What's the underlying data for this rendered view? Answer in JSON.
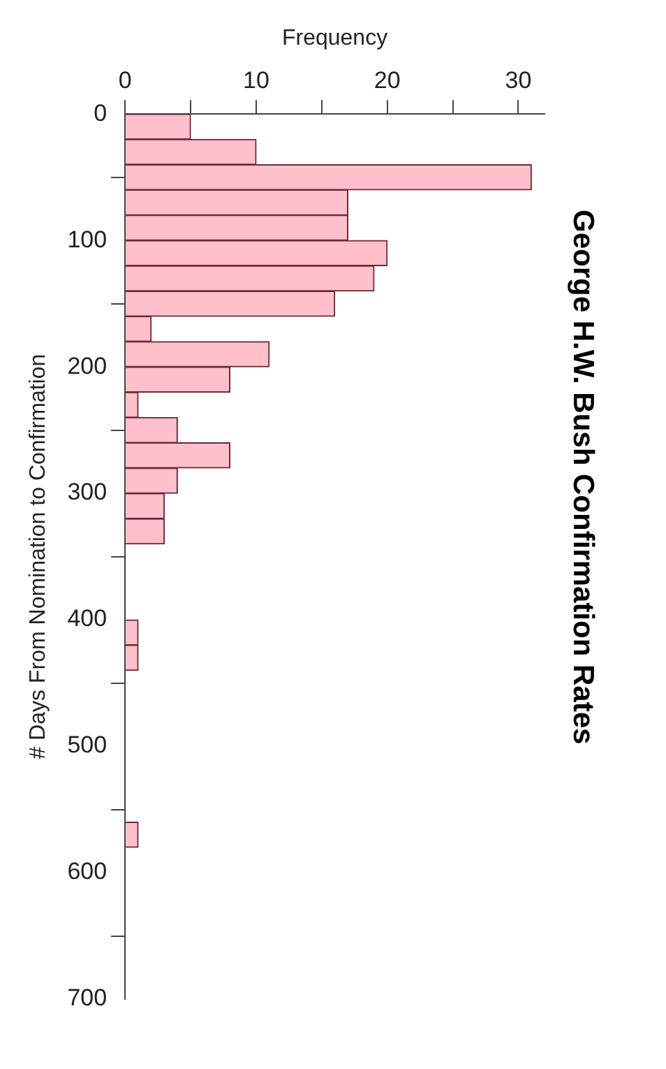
{
  "chart_data": {
    "type": "histogram",
    "orientation": "horizontal",
    "title": "George H.W. Bush Confirmation Rates",
    "xlabel": "Frequency",
    "ylabel": "# Days From Nomination to Confirmation",
    "bins": [
      0,
      20,
      40,
      60,
      80,
      100,
      120,
      140,
      160,
      180,
      200,
      220,
      240,
      260,
      280,
      300,
      320,
      340,
      360,
      380,
      400,
      420,
      440,
      460,
      480,
      500,
      520,
      540,
      560,
      580
    ],
    "values": [
      5,
      10,
      31,
      17,
      17,
      20,
      19,
      16,
      2,
      11,
      8,
      1,
      4,
      8,
      4,
      3,
      3,
      0,
      0,
      0,
      1,
      1,
      0,
      0,
      0,
      0,
      0,
      0,
      1
    ],
    "color": "#ffc0cb",
    "xlim": [
      0,
      32
    ],
    "xticks": [
      0,
      {
        "value": 5,
        "label": null
      },
      10,
      {
        "value": 15,
        "label": null
      },
      20,
      {
        "value": 25,
        "label": null
      },
      30
    ],
    "ylim": [
      700,
      0
    ],
    "yticks": [
      0,
      100,
      200,
      300,
      400,
      500,
      600,
      700
    ],
    "grid": false,
    "legend": false
  }
}
